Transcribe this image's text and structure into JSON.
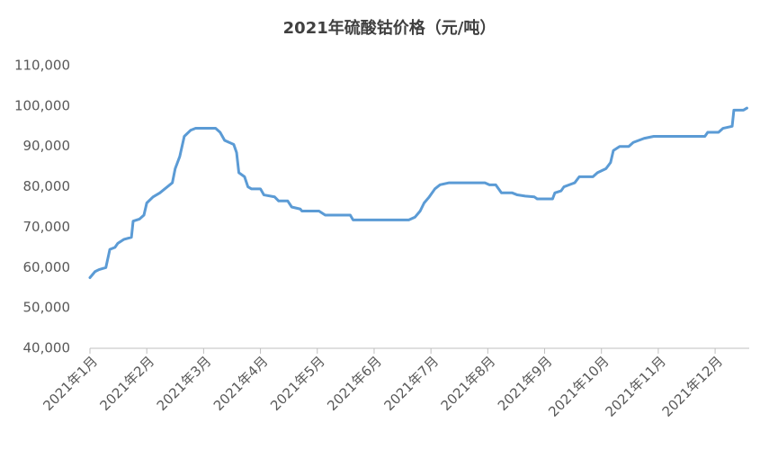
{
  "chart_data": {
    "type": "line",
    "title": "2021年硫酸钴价格（元/吨）",
    "series": [
      {
        "name": "硫酸钴价格",
        "color": "#5b9bd5",
        "x": [
          1.0,
          1.09,
          1.16,
          1.28,
          1.35,
          1.44,
          1.49,
          1.6,
          1.73,
          1.76,
          1.87,
          1.95,
          2.0,
          2.11,
          2.23,
          2.45,
          2.5,
          2.58,
          2.66,
          2.77,
          2.86,
          3.21,
          3.29,
          3.37,
          3.53,
          3.58,
          3.62,
          3.72,
          3.78,
          3.84,
          4.0,
          4.06,
          4.25,
          4.32,
          4.48,
          4.55,
          4.7,
          4.73,
          5.03,
          5.14,
          5.58,
          5.63,
          6.61,
          6.72,
          6.81,
          6.88,
          6.97,
          7.07,
          7.16,
          7.32,
          7.95,
          8.03,
          8.14,
          8.24,
          8.43,
          8.52,
          8.66,
          8.82,
          8.87,
          9.14,
          9.18,
          9.29,
          9.34,
          9.53,
          9.61,
          9.85,
          9.93,
          10.08,
          10.16,
          10.21,
          10.32,
          10.48,
          10.56,
          10.75,
          10.92,
          11.82,
          11.87,
          12.06,
          12.14,
          12.3,
          12.33,
          12.5,
          12.56
        ],
        "values": [
          57500,
          59000,
          59500,
          60000,
          64500,
          65000,
          66000,
          67000,
          67500,
          71500,
          72000,
          73000,
          76000,
          77500,
          78500,
          81000,
          84500,
          87500,
          92500,
          94000,
          94500,
          94500,
          93500,
          91500,
          90500,
          88500,
          83500,
          82500,
          80000,
          79500,
          79500,
          78000,
          77500,
          76500,
          76500,
          75000,
          74500,
          74000,
          74000,
          73000,
          73000,
          71800,
          71800,
          72500,
          74000,
          76000,
          77500,
          79500,
          80500,
          81000,
          81000,
          80500,
          80500,
          78500,
          78500,
          78000,
          77700,
          77500,
          77000,
          77000,
          78500,
          79000,
          80000,
          81000,
          82500,
          82500,
          83500,
          84500,
          86000,
          89000,
          90000,
          90000,
          91000,
          92000,
          92500,
          92500,
          93500,
          93500,
          94500,
          95000,
          99000,
          99000,
          99500
        ]
      }
    ],
    "xlim": [
      1,
      12.6
    ],
    "xticks": [
      {
        "value": 1,
        "label": "2021年1月"
      },
      {
        "value": 2,
        "label": "2021年2月"
      },
      {
        "value": 3,
        "label": "2021年3月"
      },
      {
        "value": 4,
        "label": "2021年4月"
      },
      {
        "value": 5,
        "label": "2021年5月"
      },
      {
        "value": 6,
        "label": "2021年6月"
      },
      {
        "value": 7,
        "label": "2021年7月"
      },
      {
        "value": 8,
        "label": "2021年8月"
      },
      {
        "value": 9,
        "label": "2021年9月"
      },
      {
        "value": 10,
        "label": "2021年10月"
      },
      {
        "value": 11,
        "label": "2021年11月"
      },
      {
        "value": 12,
        "label": "2021年12月"
      }
    ],
    "ylim": [
      40000,
      110000
    ],
    "yticks": [
      {
        "value": 40000,
        "label": "40,000"
      },
      {
        "value": 50000,
        "label": "50,000"
      },
      {
        "value": 60000,
        "label": "60,000"
      },
      {
        "value": 70000,
        "label": "70,000"
      },
      {
        "value": 80000,
        "label": "80,000"
      },
      {
        "value": 90000,
        "label": "90,000"
      },
      {
        "value": 100000,
        "label": "100,000"
      },
      {
        "value": 110000,
        "label": "110,000"
      }
    ],
    "grid": false
  }
}
